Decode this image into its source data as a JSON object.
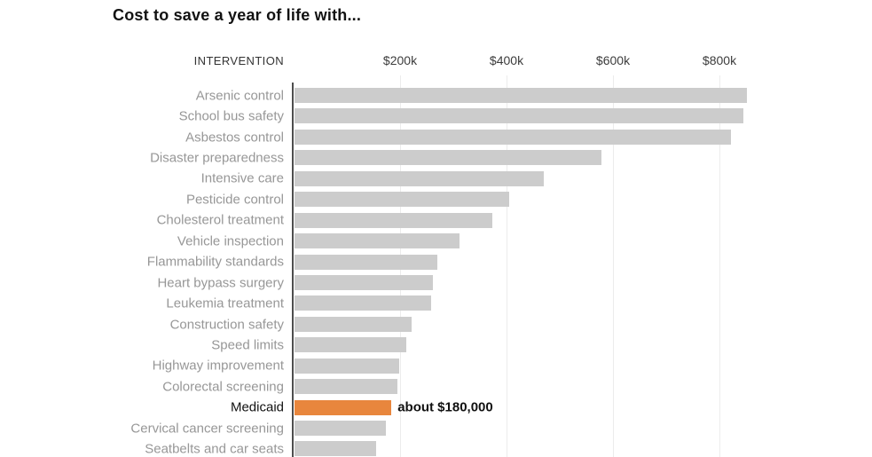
{
  "title": "Cost to save a year of life with...",
  "header": {
    "intervention_label": "INTERVENTION"
  },
  "colors": {
    "bar_default": "#cccccc",
    "bar_highlight": "#e8863d",
    "axis_line": "#4d4d4d",
    "gridline": "#ececec",
    "label_default": "#979797",
    "label_highlight": "#111111"
  },
  "chart_data": {
    "type": "bar",
    "orientation": "horizontal",
    "title": "Cost to save a year of life with...",
    "xlabel": "",
    "ylabel": "INTERVENTION",
    "grid": true,
    "xlim_k": [
      0,
      1085
    ],
    "tick_values_k": [
      200,
      400,
      600,
      800
    ],
    "tick_labels": [
      "$200k",
      "$400k",
      "$600k",
      "$800k"
    ],
    "categories": [
      "Arsenic control",
      "School bus safety",
      "Asbestos control",
      "Disaster preparedness",
      "Intensive care",
      "Pesticide control",
      "Cholesterol treatment",
      "Vehicle inspection",
      "Flammability standards",
      "Heart bypass surgery",
      "Leukemia treatment",
      "Construction safety",
      "Speed limits",
      "Highway improvement",
      "Colorectal screening",
      "Medicaid",
      "Cervical cancer screening",
      "Seatbelts and car seats"
    ],
    "values_k": [
      850,
      843,
      820,
      577,
      468,
      403,
      371,
      310,
      268,
      260,
      256,
      220,
      210,
      197,
      193,
      182,
      171,
      153
    ],
    "highlight_category": "Medicaid",
    "highlight_annotation": "about $180,000"
  }
}
